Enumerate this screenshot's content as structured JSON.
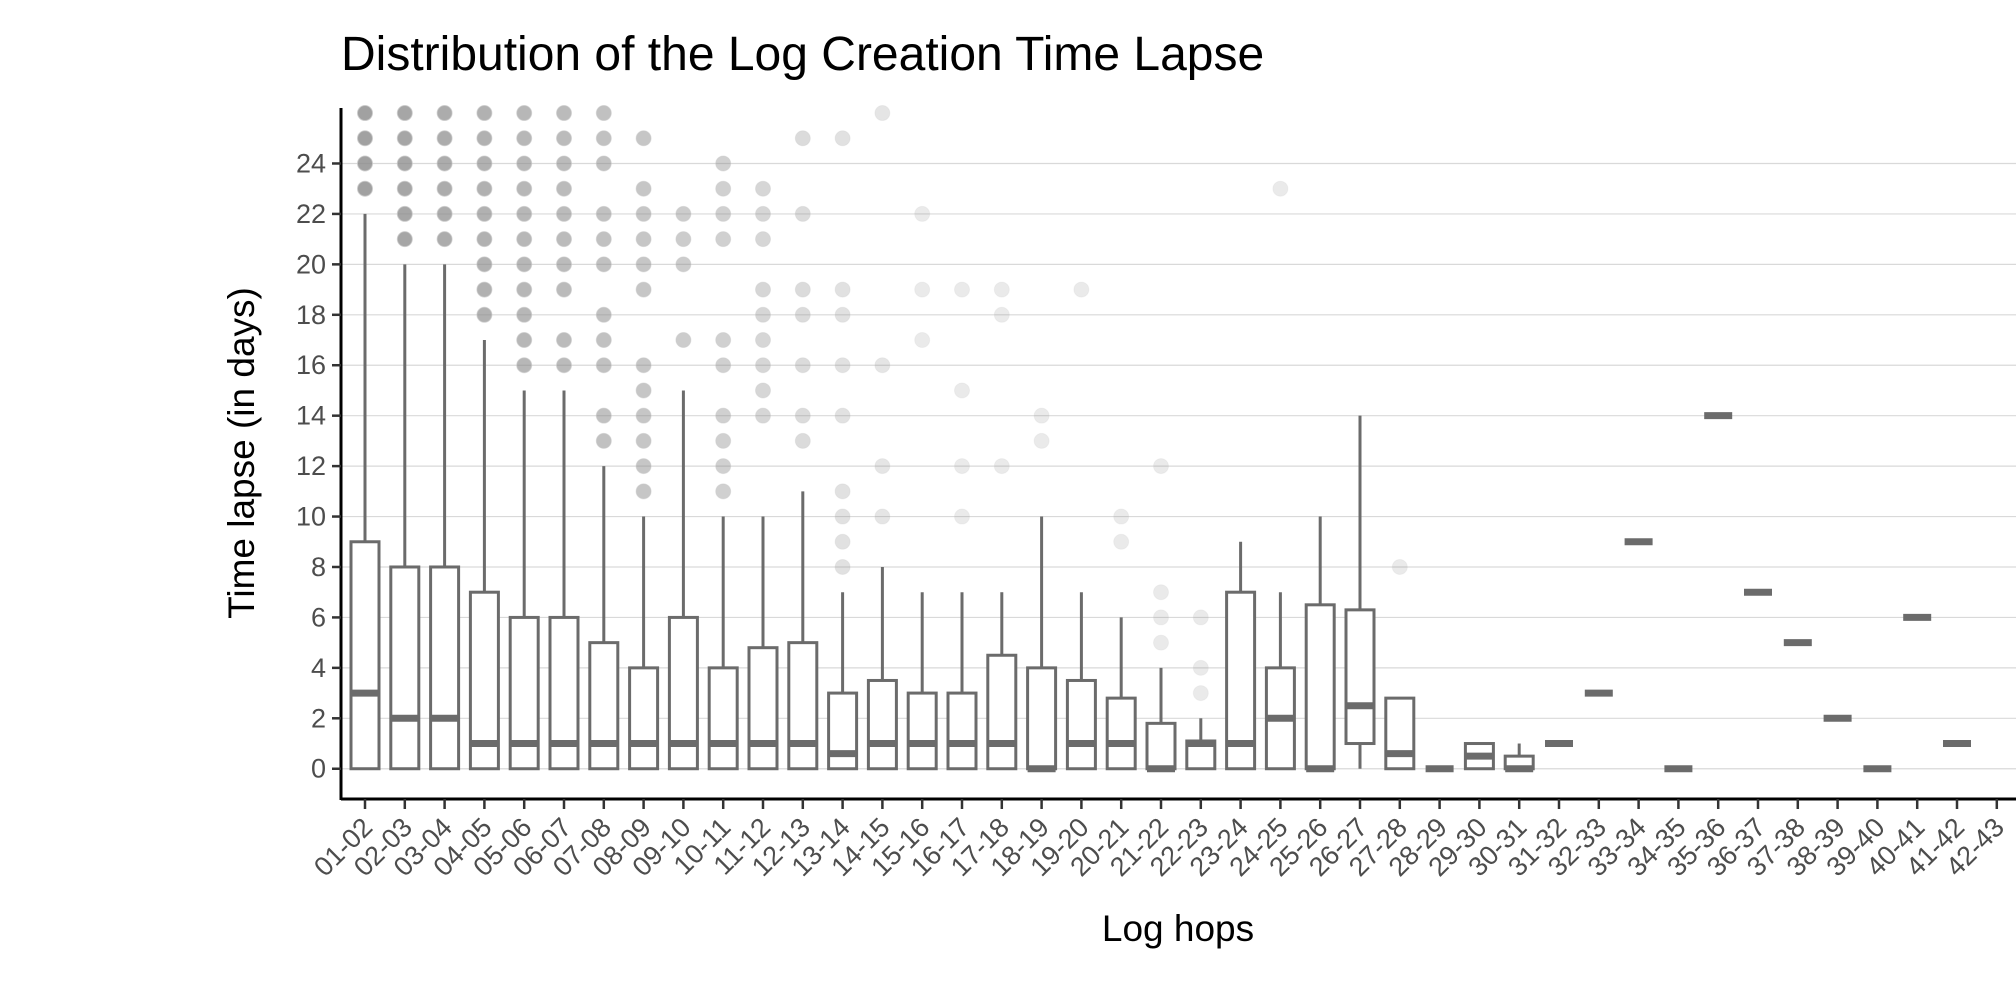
{
  "chart_data": {
    "type": "box",
    "title": "Distribution of the Log Creation Time Lapse",
    "xlabel": "Log hops",
    "ylabel": "Time lapse (in days)",
    "ylim": [
      -1.2,
      26.2
    ],
    "yticks": [
      0,
      2,
      4,
      6,
      8,
      10,
      12,
      14,
      16,
      18,
      20,
      22,
      24
    ],
    "grid": "horizontal",
    "categories": [
      "01-02",
      "02-03",
      "03-04",
      "04-05",
      "05-06",
      "06-07",
      "07-08",
      "08-09",
      "09-10",
      "10-11",
      "11-12",
      "12-13",
      "13-14",
      "14-15",
      "15-16",
      "16-17",
      "17-18",
      "18-19",
      "19-20",
      "20-21",
      "21-22",
      "22-23",
      "23-24",
      "24-25",
      "25-26",
      "26-27",
      "27-28",
      "28-29",
      "29-30",
      "30-31",
      "31-32",
      "32-33",
      "33-34",
      "34-35",
      "35-36",
      "36-37",
      "37-38",
      "38-39",
      "39-40",
      "40-41",
      "41-42",
      "42-43"
    ],
    "boxes": [
      {
        "category": "01-02",
        "q1": 0,
        "median": 3,
        "q3": 9,
        "whisker_low": 0,
        "whisker_high": 22
      },
      {
        "category": "02-03",
        "q1": 0,
        "median": 2,
        "q3": 8,
        "whisker_low": 0,
        "whisker_high": 20
      },
      {
        "category": "03-04",
        "q1": 0,
        "median": 2,
        "q3": 8,
        "whisker_low": 0,
        "whisker_high": 20
      },
      {
        "category": "04-05",
        "q1": 0,
        "median": 1,
        "q3": 7,
        "whisker_low": 0,
        "whisker_high": 17
      },
      {
        "category": "05-06",
        "q1": 0,
        "median": 1,
        "q3": 6,
        "whisker_low": 0,
        "whisker_high": 15
      },
      {
        "category": "06-07",
        "q1": 0,
        "median": 1,
        "q3": 6,
        "whisker_low": 0,
        "whisker_high": 15
      },
      {
        "category": "07-08",
        "q1": 0,
        "median": 1,
        "q3": 5,
        "whisker_low": 0,
        "whisker_high": 12
      },
      {
        "category": "08-09",
        "q1": 0,
        "median": 1,
        "q3": 4,
        "whisker_low": 0,
        "whisker_high": 10
      },
      {
        "category": "09-10",
        "q1": 0,
        "median": 1,
        "q3": 6,
        "whisker_low": 0,
        "whisker_high": 15
      },
      {
        "category": "10-11",
        "q1": 0,
        "median": 1,
        "q3": 4,
        "whisker_low": 0,
        "whisker_high": 10
      },
      {
        "category": "11-12",
        "q1": 0,
        "median": 1,
        "q3": 4.8,
        "whisker_low": 0,
        "whisker_high": 10
      },
      {
        "category": "12-13",
        "q1": 0,
        "median": 1,
        "q3": 5,
        "whisker_low": 0,
        "whisker_high": 11
      },
      {
        "category": "13-14",
        "q1": 0,
        "median": 0.6,
        "q3": 3,
        "whisker_low": 0,
        "whisker_high": 7
      },
      {
        "category": "14-15",
        "q1": 0,
        "median": 1,
        "q3": 3.5,
        "whisker_low": 0,
        "whisker_high": 8
      },
      {
        "category": "15-16",
        "q1": 0,
        "median": 1,
        "q3": 3,
        "whisker_low": 0,
        "whisker_high": 7
      },
      {
        "category": "16-17",
        "q1": 0,
        "median": 1,
        "q3": 3,
        "whisker_low": 0,
        "whisker_high": 7
      },
      {
        "category": "17-18",
        "q1": 0,
        "median": 1,
        "q3": 4.5,
        "whisker_low": 0,
        "whisker_high": 7
      },
      {
        "category": "18-19",
        "q1": 0,
        "median": 0,
        "q3": 4,
        "whisker_low": 0,
        "whisker_high": 10
      },
      {
        "category": "19-20",
        "q1": 0,
        "median": 1,
        "q3": 3.5,
        "whisker_low": 0,
        "whisker_high": 7
      },
      {
        "category": "20-21",
        "q1": 0,
        "median": 1,
        "q3": 2.8,
        "whisker_low": 0,
        "whisker_high": 6
      },
      {
        "category": "21-22",
        "q1": 0,
        "median": 0,
        "q3": 1.8,
        "whisker_low": 0,
        "whisker_high": 4
      },
      {
        "category": "22-23",
        "q1": 0,
        "median": 1,
        "q3": 1.1,
        "whisker_low": 0,
        "whisker_high": 2
      },
      {
        "category": "23-24",
        "q1": 0,
        "median": 1,
        "q3": 7,
        "whisker_low": 0,
        "whisker_high": 9
      },
      {
        "category": "24-25",
        "q1": 0,
        "median": 2,
        "q3": 4,
        "whisker_low": 0,
        "whisker_high": 7
      },
      {
        "category": "25-26",
        "q1": 0,
        "median": 0,
        "q3": 6.5,
        "whisker_low": 0,
        "whisker_high": 10
      },
      {
        "category": "26-27",
        "q1": 1,
        "median": 2.5,
        "q3": 6.3,
        "whisker_low": 0,
        "whisker_high": 14
      },
      {
        "category": "27-28",
        "q1": 0,
        "median": 0.6,
        "q3": 2.8,
        "whisker_low": 0,
        "whisker_high": 2.8
      },
      {
        "category": "28-29",
        "q1": 0,
        "median": 0,
        "q3": 0,
        "whisker_low": 0,
        "whisker_high": 0
      },
      {
        "category": "29-30",
        "q1": 0,
        "median": 0.5,
        "q3": 1,
        "whisker_low": 0,
        "whisker_high": 1
      },
      {
        "category": "30-31",
        "q1": 0,
        "median": 0,
        "q3": 0.5,
        "whisker_low": 0,
        "whisker_high": 1
      },
      {
        "category": "31-32",
        "q1": 1,
        "median": 1,
        "q3": 1,
        "whisker_low": 1,
        "whisker_high": 1
      },
      {
        "category": "32-33",
        "q1": 3,
        "median": 3,
        "q3": 3,
        "whisker_low": 3,
        "whisker_high": 3
      },
      {
        "category": "33-34",
        "q1": 9,
        "median": 9,
        "q3": 9,
        "whisker_low": 9,
        "whisker_high": 9
      },
      {
        "category": "34-35",
        "q1": 0,
        "median": 0,
        "q3": 0,
        "whisker_low": 0,
        "whisker_high": 0
      },
      {
        "category": "35-36",
        "q1": 14,
        "median": 14,
        "q3": 14,
        "whisker_low": 14,
        "whisker_high": 14
      },
      {
        "category": "36-37",
        "q1": 7,
        "median": 7,
        "q3": 7,
        "whisker_low": 7,
        "whisker_high": 7
      },
      {
        "category": "37-38",
        "q1": 5,
        "median": 5,
        "q3": 5,
        "whisker_low": 5,
        "whisker_high": 5
      },
      {
        "category": "38-39",
        "q1": 2,
        "median": 2,
        "q3": 2,
        "whisker_low": 2,
        "whisker_high": 2
      },
      {
        "category": "39-40",
        "q1": 0,
        "median": 0,
        "q3": 0,
        "whisker_low": 0,
        "whisker_high": 0
      },
      {
        "category": "40-41",
        "q1": 6,
        "median": 6,
        "q3": 6,
        "whisker_low": 6,
        "whisker_high": 6
      },
      {
        "category": "41-42",
        "q1": 1,
        "median": 1,
        "q3": 1,
        "whisker_low": 1,
        "whisker_high": 1
      },
      {
        "category": "42-43",
        "q1": null,
        "median": null,
        "q3": null,
        "whisker_low": null,
        "whisker_high": null
      }
    ],
    "outliers": [
      {
        "category": "01-02",
        "values": [
          23,
          24,
          25,
          26
        ]
      },
      {
        "category": "02-03",
        "values": [
          21,
          22,
          23,
          24,
          25,
          26
        ]
      },
      {
        "category": "03-04",
        "values": [
          21,
          22,
          23,
          24,
          25,
          26
        ]
      },
      {
        "category": "04-05",
        "values": [
          18,
          19,
          20,
          21,
          22,
          23,
          24,
          25,
          26
        ]
      },
      {
        "category": "05-06",
        "values": [
          16,
          17,
          18,
          19,
          20,
          21,
          22,
          23,
          24,
          25,
          26
        ]
      },
      {
        "category": "06-07",
        "values": [
          16,
          17,
          19,
          20,
          21,
          22,
          23,
          24,
          25,
          26
        ]
      },
      {
        "category": "07-08",
        "values": [
          13,
          14,
          16,
          17,
          18,
          20,
          21,
          22,
          24,
          25,
          26
        ]
      },
      {
        "category": "08-09",
        "values": [
          11,
          12,
          13,
          14,
          15,
          16,
          19,
          20,
          21,
          22,
          23,
          25
        ]
      },
      {
        "category": "09-10",
        "values": [
          17,
          20,
          21,
          22
        ]
      },
      {
        "category": "10-11",
        "values": [
          11,
          12,
          13,
          14,
          16,
          17,
          21,
          22,
          23,
          24
        ]
      },
      {
        "category": "11-12",
        "values": [
          14,
          15,
          16,
          17,
          18,
          19,
          21,
          22,
          23
        ]
      },
      {
        "category": "12-13",
        "values": [
          13,
          14,
          16,
          18,
          19,
          22,
          25
        ]
      },
      {
        "category": "13-14",
        "values": [
          8,
          9,
          10,
          11,
          14,
          16,
          18,
          19,
          25
        ]
      },
      {
        "category": "14-15",
        "values": [
          10,
          12,
          16,
          26
        ]
      },
      {
        "category": "15-16",
        "values": [
          17,
          19,
          22
        ]
      },
      {
        "category": "16-17",
        "values": [
          10,
          12,
          15,
          19
        ]
      },
      {
        "category": "17-18",
        "values": [
          12,
          18,
          19
        ]
      },
      {
        "category": "18-19",
        "values": [
          13,
          14
        ]
      },
      {
        "category": "19-20",
        "values": [
          19
        ]
      },
      {
        "category": "20-21",
        "values": [
          9,
          10
        ]
      },
      {
        "category": "21-22",
        "values": [
          5,
          6,
          7,
          12
        ]
      },
      {
        "category": "22-23",
        "values": [
          3,
          4,
          6
        ]
      },
      {
        "category": "24-25",
        "values": [
          23
        ]
      },
      {
        "category": "27-28",
        "values": [
          8
        ]
      }
    ]
  }
}
